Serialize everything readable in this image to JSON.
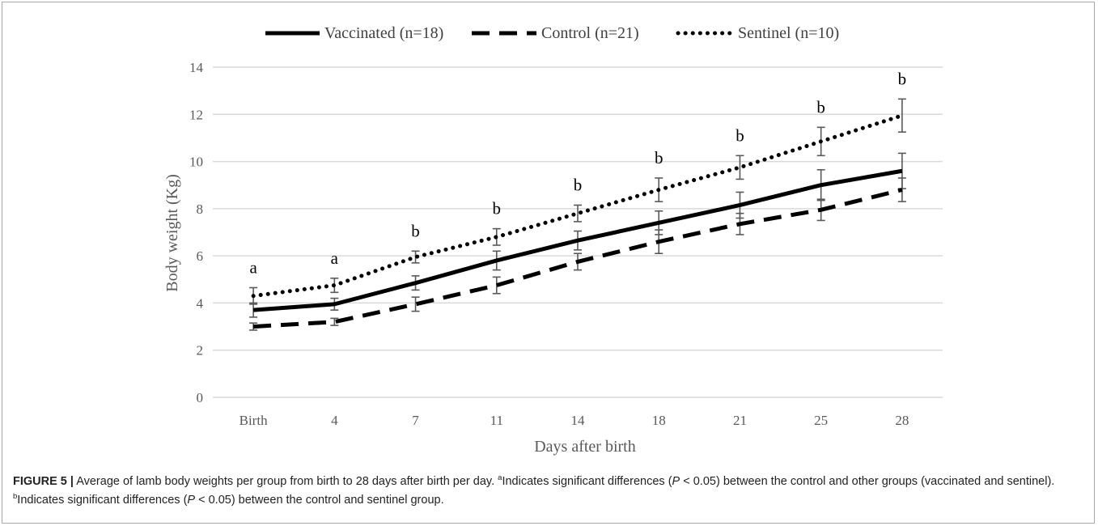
{
  "chart_data": {
    "type": "line",
    "xlabel": "Days after birth",
    "ylabel": "Body weight (Kg)",
    "ylim": [
      0,
      14
    ],
    "yticks": [
      0,
      2,
      4,
      6,
      8,
      10,
      12,
      14
    ],
    "categories": [
      "Birth",
      "4",
      "7",
      "11",
      "14",
      "18",
      "21",
      "25",
      "28"
    ],
    "grid": true,
    "legend_position": "top",
    "series": [
      {
        "name": "Vaccinated (n=18)",
        "style": "solid",
        "color": "#000000",
        "values": [
          3.7,
          3.95,
          4.85,
          5.8,
          6.65,
          7.4,
          8.15,
          9.0,
          9.6
        ],
        "error": [
          0.3,
          0.25,
          0.3,
          0.4,
          0.4,
          0.5,
          0.55,
          0.65,
          0.75
        ]
      },
      {
        "name": "Control (n=21)",
        "style": "dashed",
        "color": "#000000",
        "values": [
          3.0,
          3.2,
          3.95,
          4.75,
          5.75,
          6.6,
          7.35,
          7.95,
          8.8
        ],
        "error": [
          0.15,
          0.15,
          0.3,
          0.35,
          0.35,
          0.5,
          0.45,
          0.45,
          0.5
        ]
      },
      {
        "name": "Sentinel (n=10)",
        "style": "dotted",
        "color": "#000000",
        "values": [
          4.3,
          4.75,
          5.95,
          6.8,
          7.8,
          8.8,
          9.75,
          10.85,
          11.95
        ],
        "error": [
          0.35,
          0.3,
          0.25,
          0.35,
          0.35,
          0.5,
          0.5,
          0.6,
          0.7
        ]
      }
    ],
    "annotations": [
      "a",
      "a",
      "b",
      "b",
      "b",
      "b",
      "b",
      "b",
      "b"
    ]
  },
  "caption": {
    "figure_label": "FIGURE 5 |",
    "text_1": " Average of lamb body weights per group from birth to 28 days after birth per day. ",
    "sup_a": "a",
    "text_2": "Indicates significant differences (",
    "p_1": "P",
    "text_3": " < 0.05) between the control and other groups (vaccinated and sentinel). ",
    "sup_b": "b",
    "text_4": "Indicates significant differences (",
    "p_2": "P",
    "text_5": " < 0.05) between the control and sentinel group."
  }
}
